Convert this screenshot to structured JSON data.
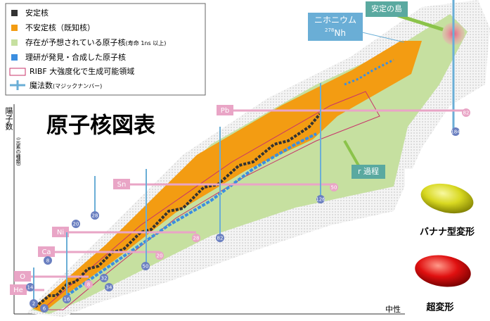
{
  "title": "原子核図表",
  "y_axis_label": "陽子数",
  "y_axis_sublabel": "(元素の種類)",
  "x_axis_label": "中性",
  "legend": {
    "items": [
      "安定核",
      "不安定核（既知核）",
      "存在が予想されている原子核",
      "理研が発見・合成した原子核",
      "RIBF 大強度化で生成可能領域",
      "魔法数"
    ],
    "notes": [
      "(寿命 1ns 以上)",
      "(マジックナンバー)"
    ]
  },
  "callouts": {
    "nihonium": "ニホニウム",
    "nihonium_mass": "278",
    "nihonium_symbol": "Nh",
    "island": "安定の島",
    "r_process": "r 過程"
  },
  "elements": [
    "He",
    "O",
    "Ca",
    "Ni",
    "Sn",
    "Pb"
  ],
  "magic_numbers": [
    "2",
    "6",
    "16",
    "14",
    "8",
    "8",
    "20",
    "28",
    "32",
    "34",
    "20",
    "28",
    "50",
    "82",
    "50",
    "126",
    "82",
    "184"
  ],
  "shapes": [
    "バナナ型変形",
    "超変形"
  ]
}
